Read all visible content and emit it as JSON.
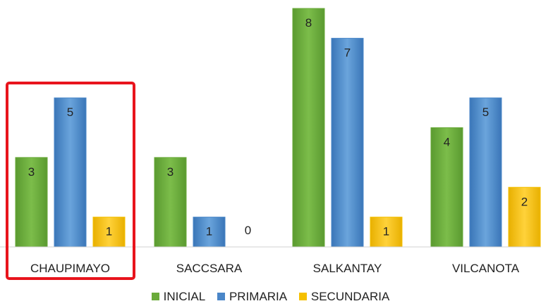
{
  "chart_data": {
    "type": "bar",
    "categories": [
      "CHAUPIMAYO",
      "SACCSARA",
      "SALKANTAY",
      "VILCANOTA"
    ],
    "series": [
      {
        "name": "INICIAL",
        "values": [
          3,
          3,
          8,
          4
        ],
        "color": "#6aaa3a"
      },
      {
        "name": "PRIMARIA",
        "values": [
          5,
          1,
          7,
          5
        ],
        "color": "#4a86c8"
      },
      {
        "name": "SECUNDARIA",
        "values": [
          1,
          0,
          1,
          2
        ],
        "color": "#f5c000"
      }
    ],
    "ylim": [
      0,
      8
    ],
    "grid": false,
    "legend_position": "bottom",
    "highlight": {
      "category": "CHAUPIMAYO",
      "color": "#e8141c"
    }
  }
}
